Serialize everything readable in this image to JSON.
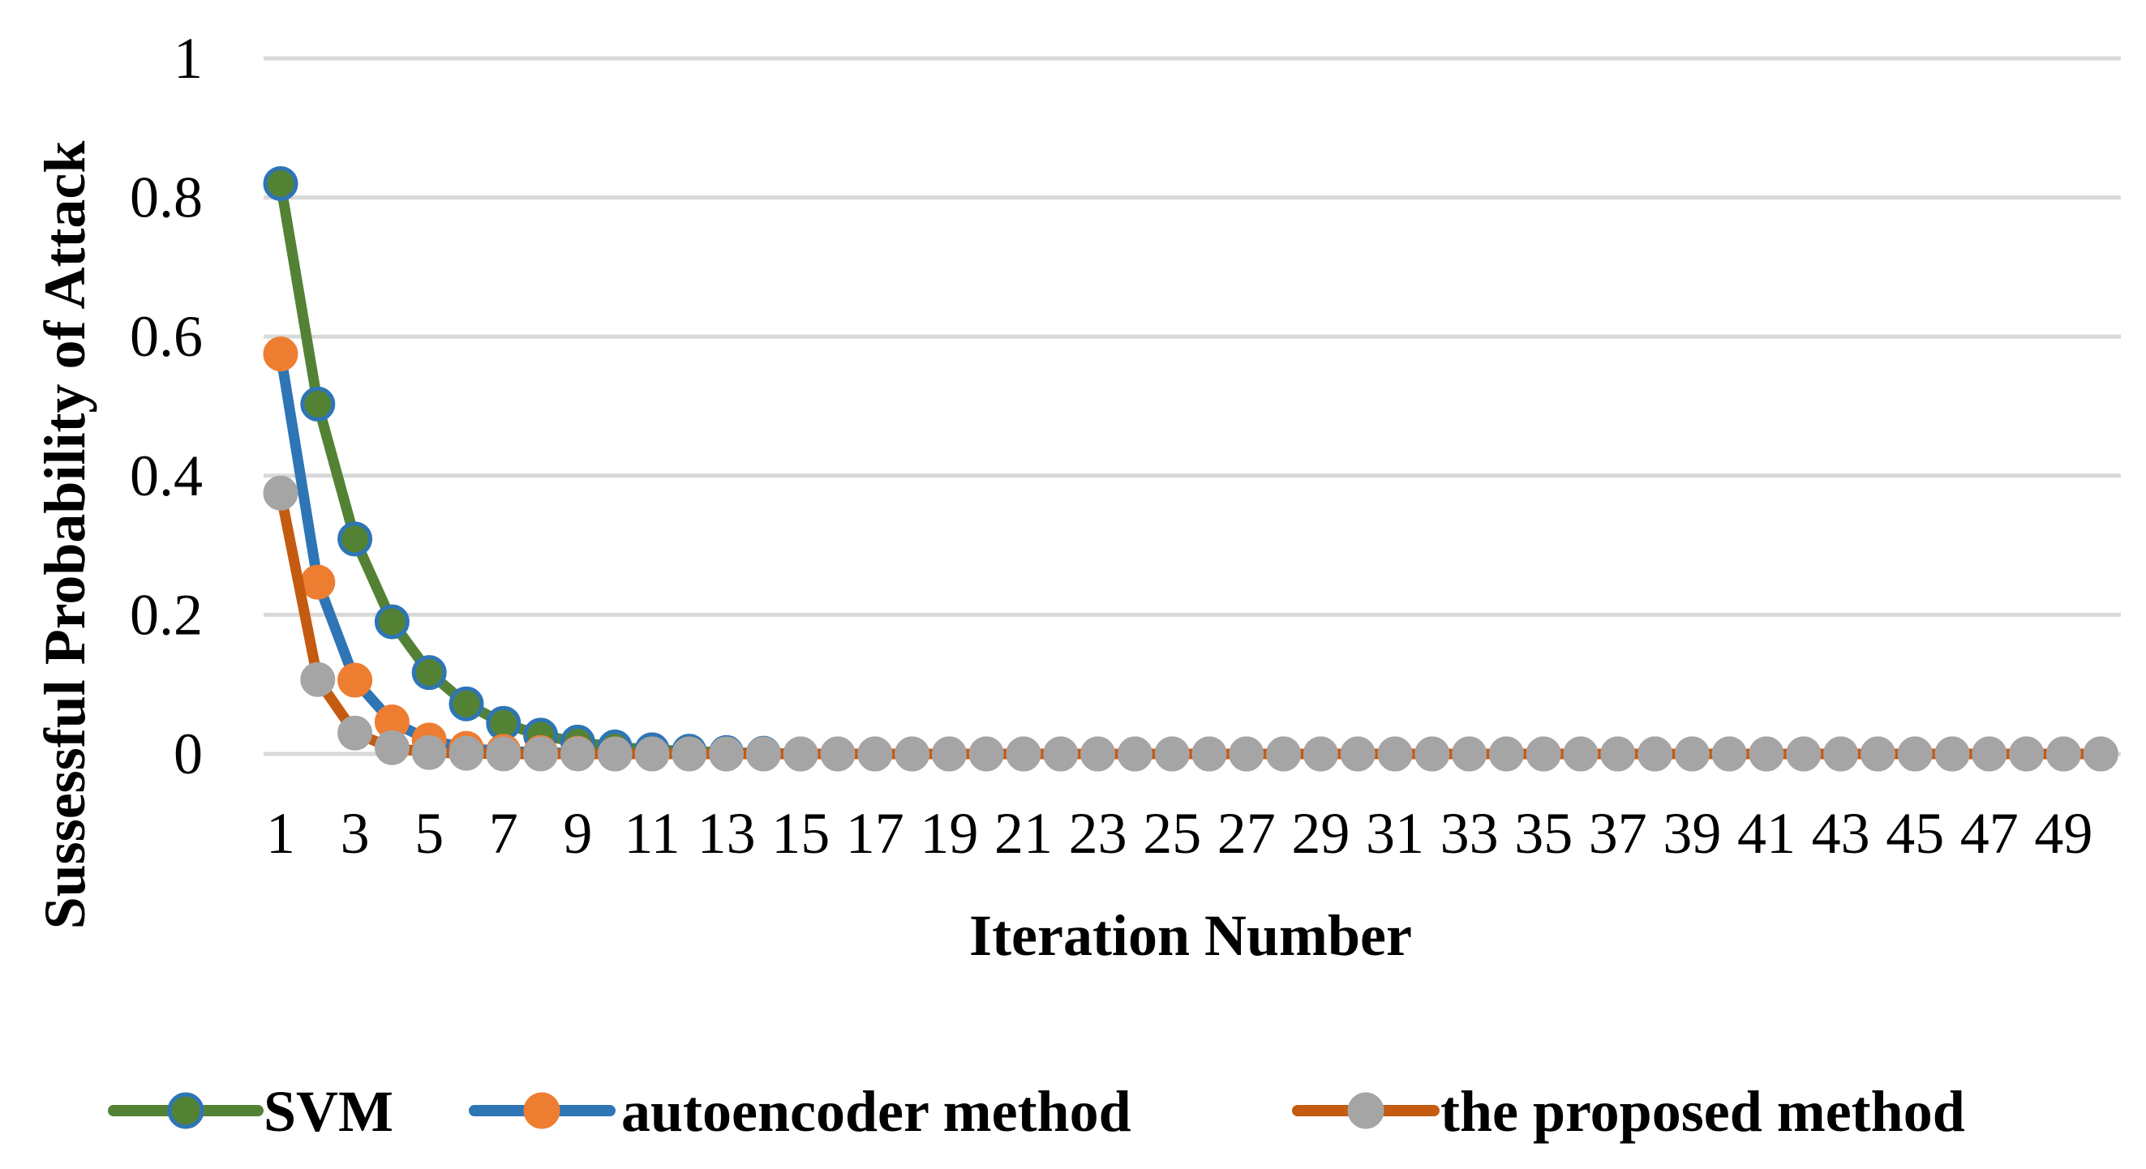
{
  "chart_data": {
    "type": "line",
    "title": "",
    "xlabel": "Iteration Number",
    "ylabel": "Sussessful Probability of Attack",
    "x": [
      1,
      2,
      3,
      4,
      5,
      6,
      7,
      8,
      9,
      10,
      11,
      12,
      13,
      14,
      15,
      16,
      17,
      18,
      19,
      20,
      21,
      22,
      23,
      24,
      25,
      26,
      27,
      28,
      29,
      30,
      31,
      32,
      33,
      34,
      35,
      36,
      37,
      38,
      39,
      40,
      41,
      42,
      43,
      44,
      45,
      46,
      47,
      48,
      49,
      50
    ],
    "x_tick_labels": [
      "1",
      "3",
      "5",
      "7",
      "9",
      "11",
      "13",
      "15",
      "17",
      "19",
      "21",
      "23",
      "25",
      "27",
      "29",
      "31",
      "33",
      "35",
      "37",
      "39",
      "41",
      "43",
      "45",
      "47",
      "49"
    ],
    "y_tick_labels": [
      "0",
      "0.2",
      "0.4",
      "0.6",
      "0.8",
      "1"
    ],
    "ylim": [
      0,
      1
    ],
    "grid": "horizontal",
    "legend_position": "bottom",
    "series": [
      {
        "name": "SVM",
        "line_color": "#548235",
        "marker_color": "#548235",
        "marker_edge": "#2E75B6",
        "values": [
          0.82,
          0.503,
          0.309,
          0.19,
          0.117,
          0.072,
          0.044,
          0.027,
          0.017,
          0.01,
          0.006,
          0.004,
          0.002,
          0.001,
          0,
          0,
          0,
          0,
          0,
          0,
          0,
          0,
          0,
          0,
          0,
          0,
          0,
          0,
          0,
          0,
          0,
          0,
          0,
          0,
          0,
          0,
          0,
          0,
          0,
          0,
          0,
          0,
          0,
          0,
          0,
          0,
          0,
          0,
          0,
          0
        ]
      },
      {
        "name": "autoencoder method",
        "line_color": "#2E75B6",
        "marker_color": "#ED7D31",
        "marker_edge": "#ED7D31",
        "values": [
          0.575,
          0.247,
          0.106,
          0.046,
          0.02,
          0.008,
          0.004,
          0.002,
          0.001,
          0,
          0,
          0,
          0,
          0,
          0,
          0,
          0,
          0,
          0,
          0,
          0,
          0,
          0,
          0,
          0,
          0,
          0,
          0,
          0,
          0,
          0,
          0,
          0,
          0,
          0,
          0,
          0,
          0,
          0,
          0,
          0,
          0,
          0,
          0,
          0,
          0,
          0,
          0,
          0,
          0
        ]
      },
      {
        "name": "the proposed method",
        "line_color": "#C55A11",
        "marker_color": "#A5A5A5",
        "marker_edge": "#A5A5A5",
        "values": [
          0.375,
          0.107,
          0.03,
          0.009,
          0.002,
          0.001,
          0,
          0,
          0,
          0,
          0,
          0,
          0,
          0,
          0,
          0,
          0,
          0,
          0,
          0,
          0,
          0,
          0,
          0,
          0,
          0,
          0,
          0,
          0,
          0,
          0,
          0,
          0,
          0,
          0,
          0,
          0,
          0,
          0,
          0,
          0,
          0,
          0,
          0,
          0,
          0,
          0,
          0,
          0,
          0
        ]
      }
    ]
  }
}
